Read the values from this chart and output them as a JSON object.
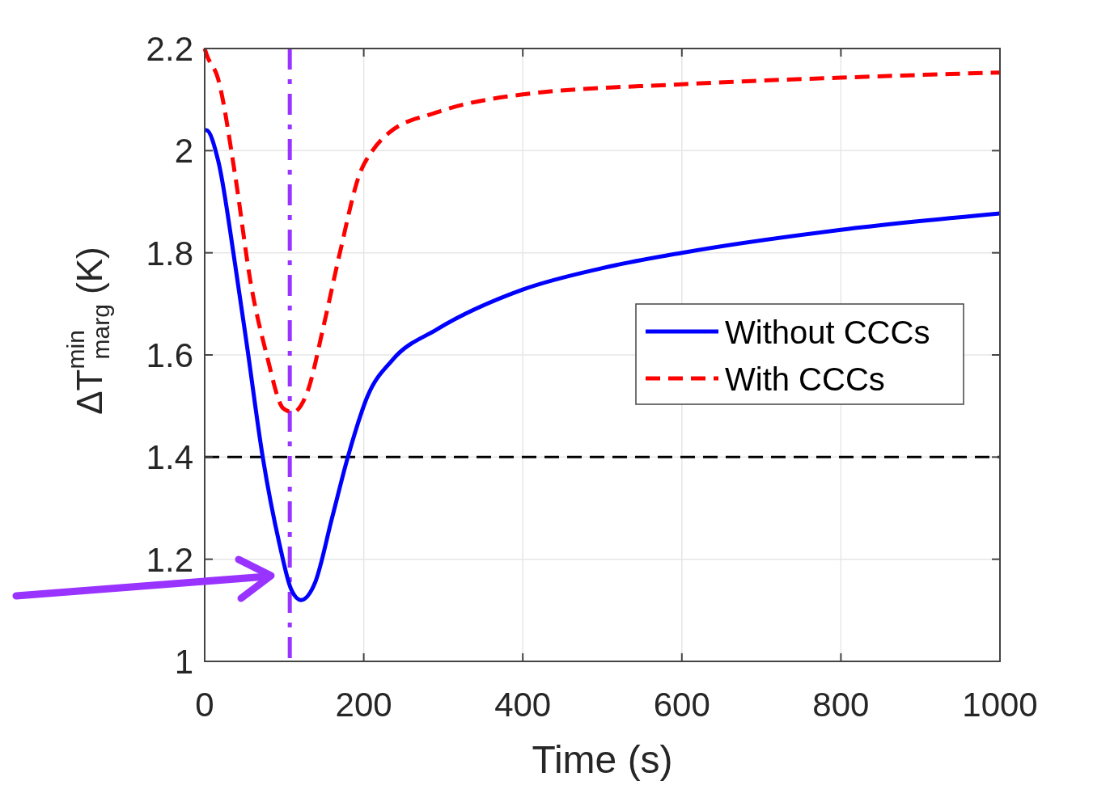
{
  "chart_data": {
    "type": "line",
    "xlabel": "Time (s)",
    "ylabel": "ΔT$^{min}$$_{marg}$ (K)",
    "xlim": [
      0,
      1000
    ],
    "ylim": [
      1,
      2.2
    ],
    "xticks": [
      0,
      200,
      400,
      600,
      800,
      1000
    ],
    "yticks": [
      1,
      1.2,
      1.4,
      1.6,
      1.8,
      2,
      2.2
    ],
    "grid": true,
    "legend": "right",
    "series": [
      {
        "name": "Without CCCs",
        "color": "#0000ff",
        "line_style": "solid",
        "x": [
          0,
          2,
          17,
          38,
          53,
          73,
          94,
          109,
          121,
          139,
          160,
          180,
          205,
          236,
          292,
          400,
          500,
          600,
          800,
          1000
        ],
        "values": [
          2.04,
          2.04,
          1.98,
          1.78,
          1.62,
          1.4,
          1.23,
          1.14,
          1.12,
          1.155,
          1.28,
          1.4,
          1.52,
          1.59,
          1.65,
          1.728,
          1.77,
          1.8,
          1.845,
          1.877
        ]
      },
      {
        "name": "With CCCs",
        "color": "#ff0000",
        "line_style": "dashed",
        "x": [
          0,
          2,
          17,
          38,
          58,
          78,
          99,
          111,
          129,
          150,
          170,
          195,
          211,
          231,
          292,
          400,
          600,
          800,
          1000
        ],
        "values": [
          2.2,
          2.19,
          2.14,
          1.955,
          1.74,
          1.6,
          1.495,
          1.488,
          1.527,
          1.66,
          1.8,
          1.955,
          2,
          2.034,
          2.075,
          2.11,
          2.13,
          2.143,
          2.153
        ]
      }
    ],
    "ref_lines": [
      {
        "axis": "y",
        "value": 1.4,
        "color": "#000000",
        "line_style": "dashed"
      },
      {
        "axis": "x",
        "value": 107,
        "color": "#9933ff",
        "line_style": "dashdot"
      }
    ]
  }
}
